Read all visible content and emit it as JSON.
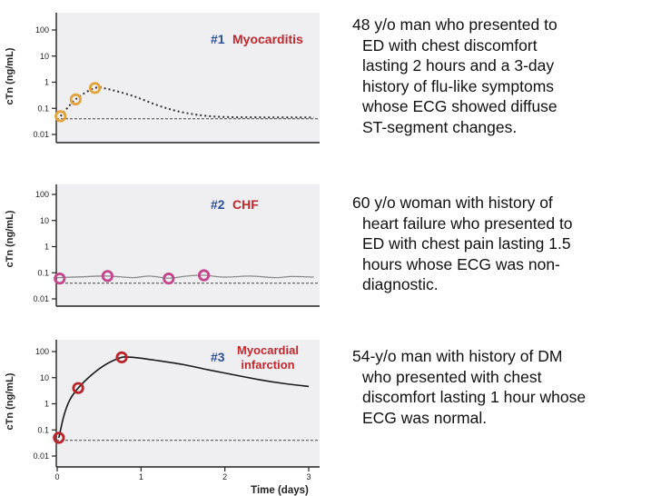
{
  "chart_data": [
    {
      "type": "scatter",
      "ylabel": "cTn (ng/mL)",
      "y_scale": "log",
      "ylim": [
        0.01,
        100
      ],
      "y_ticks": [
        "100",
        "10",
        "1",
        "0.1",
        "0.01"
      ],
      "grid": false,
      "annotation": {
        "number": "#1",
        "label": "Myocarditis",
        "number_color": "#2a4f9a",
        "label_color": "#c0282d"
      },
      "marker_color": "#e2a43a",
      "points": [
        {
          "x": 0.04,
          "y": 0.05
        },
        {
          "x": 0.22,
          "y": 0.22
        },
        {
          "x": 0.45,
          "y": 0.6
        }
      ],
      "curve": [
        [
          0.04,
          0.05
        ],
        [
          0.22,
          0.22
        ],
        [
          0.45,
          0.6
        ],
        [
          0.6,
          0.55
        ],
        [
          0.9,
          0.3
        ],
        [
          1.2,
          0.13
        ],
        [
          1.5,
          0.07
        ],
        [
          1.9,
          0.048
        ],
        [
          2.5,
          0.045
        ],
        [
          3.06,
          0.045
        ]
      ],
      "reference_line": 0.04
    },
    {
      "type": "scatter",
      "ylabel": "cTn (ng/mL)",
      "y_scale": "log",
      "ylim": [
        0.01,
        100
      ],
      "y_ticks": [
        "100",
        "10",
        "1",
        "0.1",
        "0.01"
      ],
      "grid": false,
      "annotation": {
        "number": "#2",
        "label": "CHF",
        "number_color": "#2a4f9a",
        "label_color": "#c0282d"
      },
      "marker_color": "#c4458b",
      "points": [
        {
          "x": 0.03,
          "y": 0.06
        },
        {
          "x": 0.6,
          "y": 0.075
        },
        {
          "x": 1.33,
          "y": 0.06
        },
        {
          "x": 1.75,
          "y": 0.08
        }
      ],
      "curve": [
        [
          0.0,
          0.065
        ],
        [
          0.3,
          0.07
        ],
        [
          0.6,
          0.075
        ],
        [
          0.9,
          0.065
        ],
        [
          1.1,
          0.075
        ],
        [
          1.33,
          0.062
        ],
        [
          1.55,
          0.075
        ],
        [
          1.75,
          0.08
        ],
        [
          2.0,
          0.068
        ],
        [
          2.3,
          0.075
        ],
        [
          2.6,
          0.065
        ],
        [
          2.8,
          0.072
        ],
        [
          3.06,
          0.068
        ]
      ],
      "reference_line": 0.04
    },
    {
      "type": "scatter",
      "ylabel": "cTn (ng/mL)",
      "xlabel": "Time (days)",
      "y_scale": "log",
      "ylim": [
        0.01,
        100
      ],
      "xlim": [
        0,
        3
      ],
      "x_ticks": [
        "0",
        "1",
        "2",
        "3"
      ],
      "y_ticks": [
        "100",
        "10",
        "1",
        "0.1",
        "0.01"
      ],
      "grid": false,
      "annotation": {
        "number": "#3",
        "label_line1": "Myocardial",
        "label_line2": "infarction",
        "number_color": "#2a4f9a",
        "label_color": "#c0282d"
      },
      "marker_color": "#b8242a",
      "points": [
        {
          "x": 0.02,
          "y": 0.05
        },
        {
          "x": 0.25,
          "y": 4
        },
        {
          "x": 0.77,
          "y": 60
        }
      ],
      "curve": [
        [
          0.02,
          0.05
        ],
        [
          0.08,
          0.35
        ],
        [
          0.15,
          1.4
        ],
        [
          0.25,
          4
        ],
        [
          0.4,
          12
        ],
        [
          0.55,
          28
        ],
        [
          0.7,
          50
        ],
        [
          0.8,
          62
        ],
        [
          0.95,
          58
        ],
        [
          1.2,
          45
        ],
        [
          1.5,
          32
        ],
        [
          1.8,
          20
        ],
        [
          2.1,
          13
        ],
        [
          2.4,
          8.5
        ],
        [
          2.7,
          6
        ],
        [
          3.0,
          4.6
        ]
      ],
      "reference_line": 0.04
    }
  ],
  "cases": [
    {
      "lines": [
        "48 y/o man who presented to",
        "ED with chest discomfort",
        "lasting 2 hours and a 3-day",
        "history of flu-like symptoms",
        "whose ECG showed diffuse",
        "ST-segment changes."
      ]
    },
    {
      "lines": [
        "60 y/o woman with history of",
        "heart failure who presented to",
        "ED with chest pain lasting 1.5",
        "hours whose ECG was non-",
        "diagnostic."
      ]
    },
    {
      "lines": [
        "54-y/o man with history of DM",
        "who presented with chest",
        "discomfort lasting 1 hour whose",
        "ECG was normal."
      ]
    }
  ]
}
